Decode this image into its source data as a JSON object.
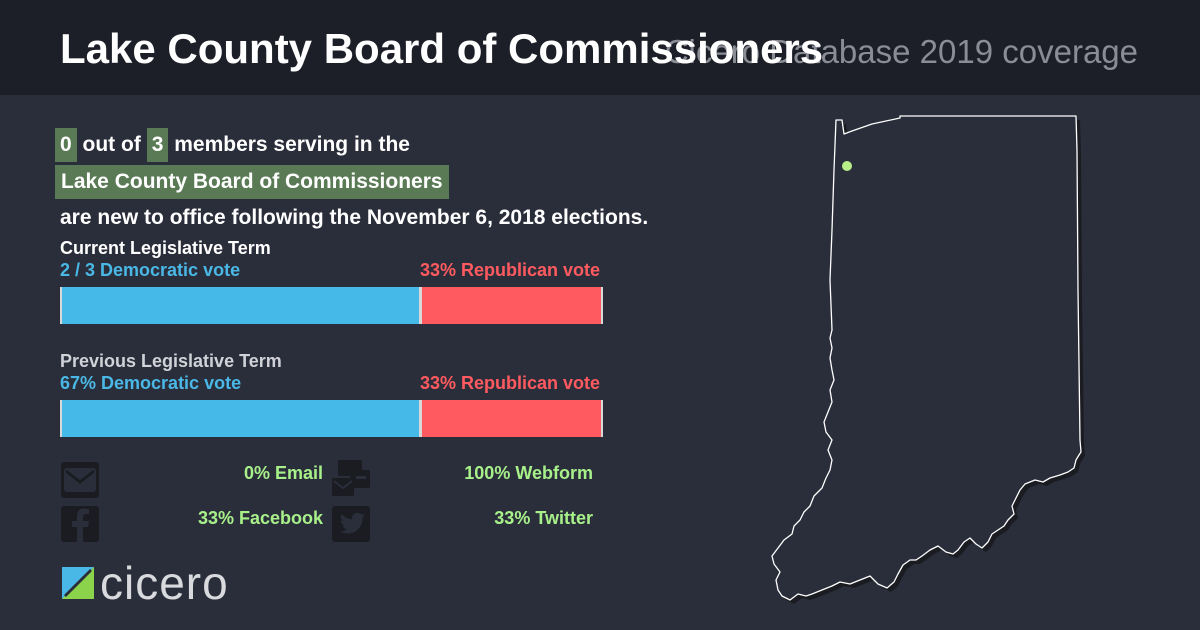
{
  "header": {
    "title": "Lake County Board of Commissioners",
    "subtitle": "Cicero Database 2019 coverage"
  },
  "summary": {
    "new_count": "0",
    "text_out_of": "out of",
    "total_count": "3",
    "text_members": "members serving in the",
    "body_name": "Lake County Board of Commissioners",
    "text_tail": "are new to office following the November 6, 2018 elections."
  },
  "current_term": {
    "label": "Current Legislative Term",
    "dem_label": "2 / 3 Democratic vote",
    "rep_label": "33% Republican vote",
    "dem_fraction": 0.6667,
    "rep_fraction": 0.3333
  },
  "previous_term": {
    "label": "Previous Legislative Term",
    "dem_label": "67% Democratic vote",
    "rep_label": "33% Republican vote",
    "dem_fraction": 0.6667,
    "rep_fraction": 0.3333
  },
  "contact": {
    "email": "0% Email",
    "webform": "100% Webform",
    "facebook": "33% Facebook",
    "twitter": "33% Twitter",
    "icons": [
      "envelope-icon",
      "webform-icon",
      "facebook-icon",
      "twitter-icon"
    ]
  },
  "logo": {
    "text": "cicero"
  },
  "colors": {
    "background": "#2a2e3a",
    "header": "#1c1f27",
    "democratic": "#45bae8",
    "republican": "#ff5a5f",
    "highlight": "#5a7a55",
    "contact_text": "#a8f08a",
    "marker": "#b8ef88"
  }
}
